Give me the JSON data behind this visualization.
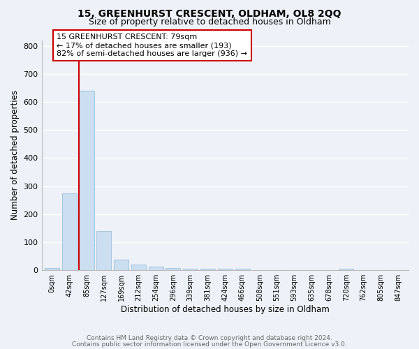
{
  "title": "15, GREENHURST CRESCENT, OLDHAM, OL8 2QQ",
  "subtitle": "Size of property relative to detached houses in Oldham",
  "xlabel": "Distribution of detached houses by size in Oldham",
  "ylabel": "Number of detached properties",
  "bar_labels": [
    "0sqm",
    "42sqm",
    "85sqm",
    "127sqm",
    "169sqm",
    "212sqm",
    "254sqm",
    "296sqm",
    "339sqm",
    "381sqm",
    "424sqm",
    "466sqm",
    "508sqm",
    "551sqm",
    "593sqm",
    "635sqm",
    "678sqm",
    "720sqm",
    "762sqm",
    "805sqm",
    "847sqm"
  ],
  "bar_values": [
    8,
    275,
    640,
    140,
    38,
    20,
    12,
    8,
    5,
    5,
    5,
    5,
    0,
    0,
    0,
    0,
    0,
    5,
    0,
    0,
    0
  ],
  "bar_color": "#ccdff0",
  "bar_edge_color": "#a8c8e0",
  "property_line_color": "#cc0000",
  "annotation_text": "15 GREENHURST CRESCENT: 79sqm\n← 17% of detached houses are smaller (193)\n82% of semi-detached houses are larger (936) →",
  "annotation_box_color": "#ffffff",
  "annotation_box_edge_color": "#cc0000",
  "ylim": [
    0,
    820
  ],
  "yticks": [
    0,
    100,
    200,
    300,
    400,
    500,
    600,
    700,
    800
  ],
  "footer_line1": "Contains HM Land Registry data © Crown copyright and database right 2024.",
  "footer_line2": "Contains public sector information licensed under the Open Government Licence v3.0.",
  "bg_color": "#eef2f8",
  "plot_bg_color": "#eef2f8",
  "grid_color": "#ffffff",
  "title_fontsize": 10,
  "subtitle_fontsize": 9
}
